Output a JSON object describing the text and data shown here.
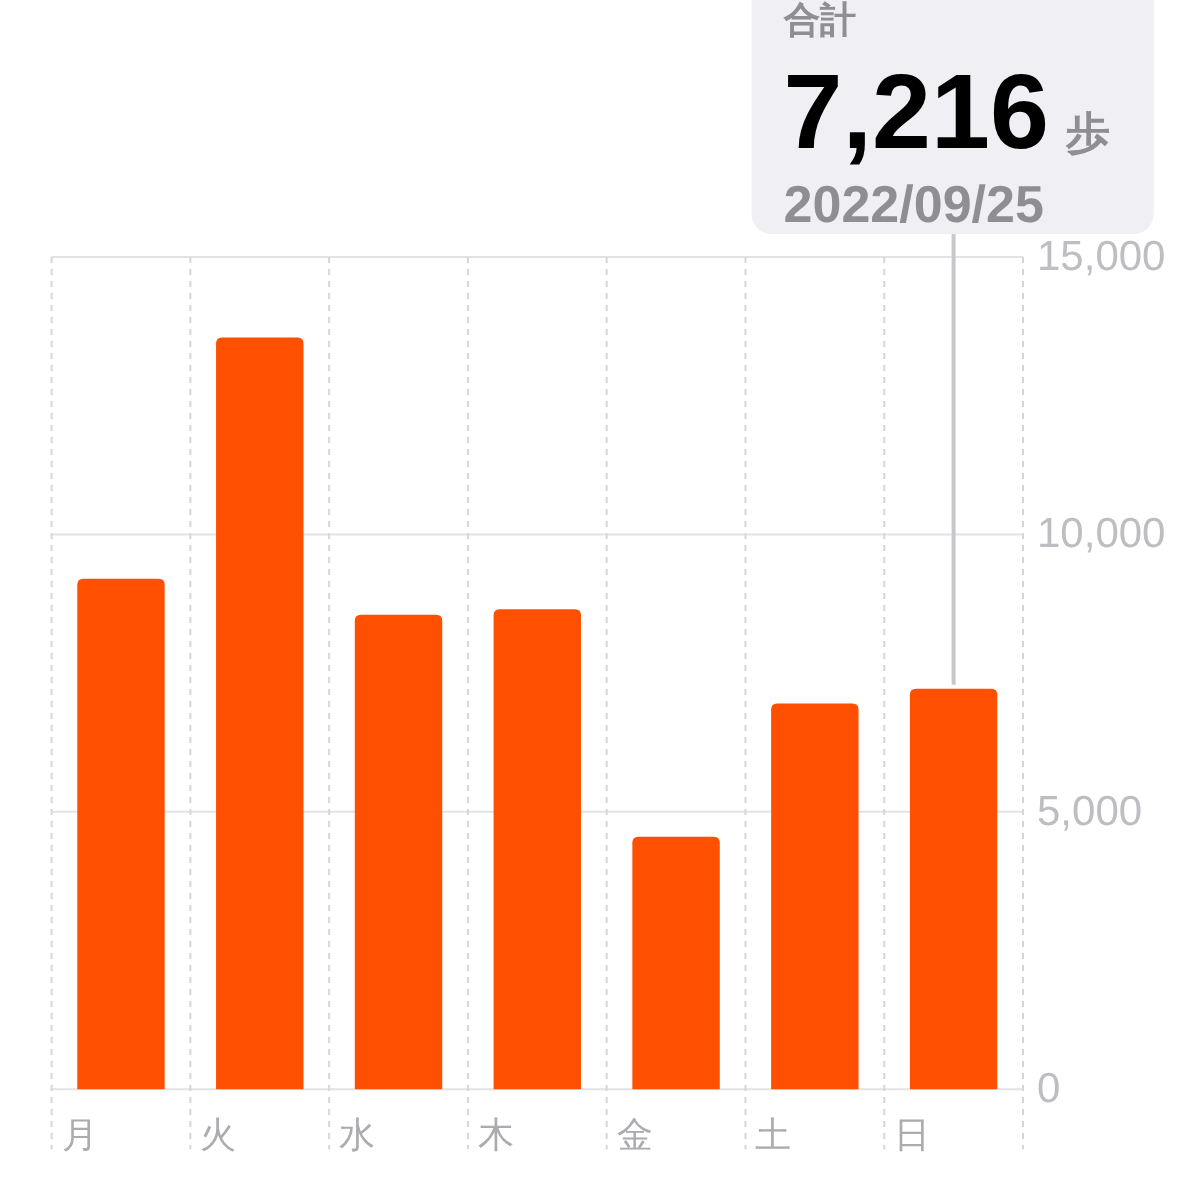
{
  "chart_data": {
    "type": "bar",
    "categories": [
      "月",
      "火",
      "水",
      "木",
      "金",
      "土",
      "日"
    ],
    "values": [
      9200,
      13550,
      8550,
      8650,
      4550,
      6950,
      7216
    ],
    "color": "#ff4f00",
    "ylim": [
      0,
      15000
    ],
    "yticks": [
      0,
      {
        "value": 5000,
        "label": "5,000"
      },
      {
        "value": 10000,
        "label": "10,000"
      },
      {
        "value": 15000,
        "label": "15,000"
      }
    ],
    "grid": true,
    "annotations": [
      "合計",
      "7,216 歩",
      "2022/09/25"
    ]
  }
}
